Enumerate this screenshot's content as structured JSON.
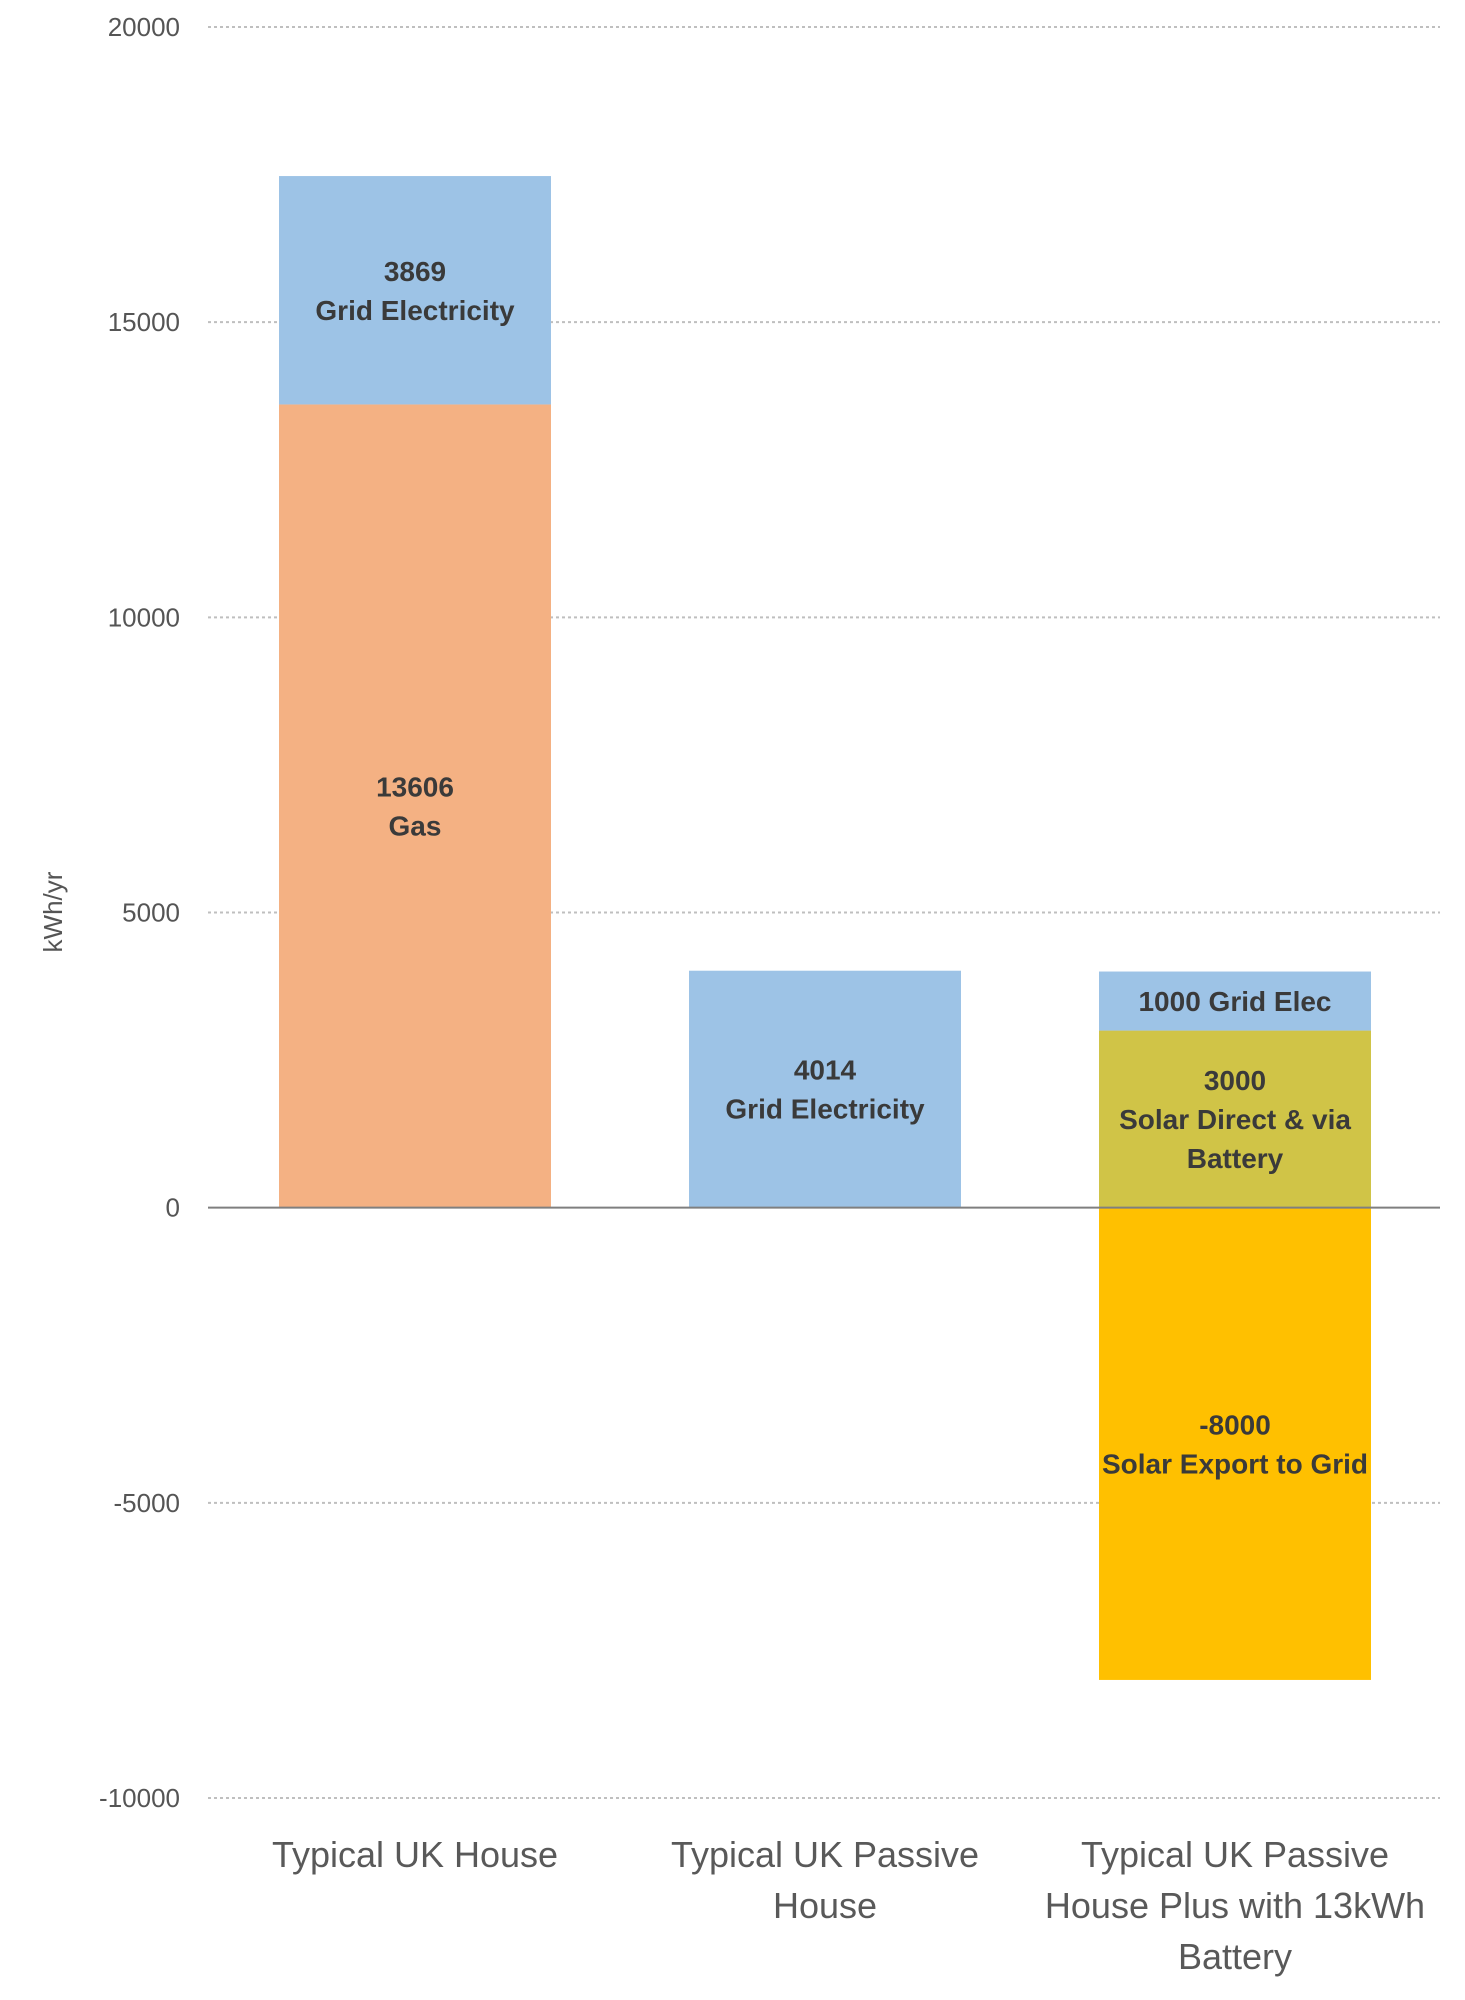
{
  "chart_data": {
    "type": "bar",
    "stacked": true,
    "categories": [
      [
        "Typical UK House"
      ],
      [
        "Typical UK Passive",
        "House"
      ],
      [
        "Typical UK Passive",
        "House Plus with 13kWh",
        "Battery"
      ]
    ],
    "ylabel": "kWh/yr",
    "ylim": [
      -10000,
      20000
    ],
    "yticks": [
      20000,
      15000,
      10000,
      5000,
      0,
      -5000,
      -10000
    ],
    "grid": true,
    "segments": [
      {
        "category": 0,
        "start": 0,
        "value": 13606,
        "color": "#f4b183",
        "label": [
          "13606",
          "Gas"
        ]
      },
      {
        "category": 0,
        "start": 13606,
        "value": 3869,
        "color": "#9dc3e6",
        "label": [
          "3869",
          "Grid Electricity"
        ]
      },
      {
        "category": 1,
        "start": 0,
        "value": 4014,
        "color": "#9dc3e6",
        "label": [
          "4014",
          "Grid Electricity"
        ]
      },
      {
        "category": 2,
        "start": 0,
        "value": 3000,
        "color": "#d0c447",
        "label": [
          "3000",
          "Solar Direct & via",
          "Battery"
        ]
      },
      {
        "category": 2,
        "start": 3000,
        "value": 1000,
        "color": "#9dc3e6",
        "label": [
          "1000 Grid Elec"
        ]
      },
      {
        "category": 2,
        "start": 0,
        "value": -8000,
        "color": "#ffc000",
        "label": [
          "-8000",
          "Solar Export to Grid"
        ]
      }
    ]
  }
}
